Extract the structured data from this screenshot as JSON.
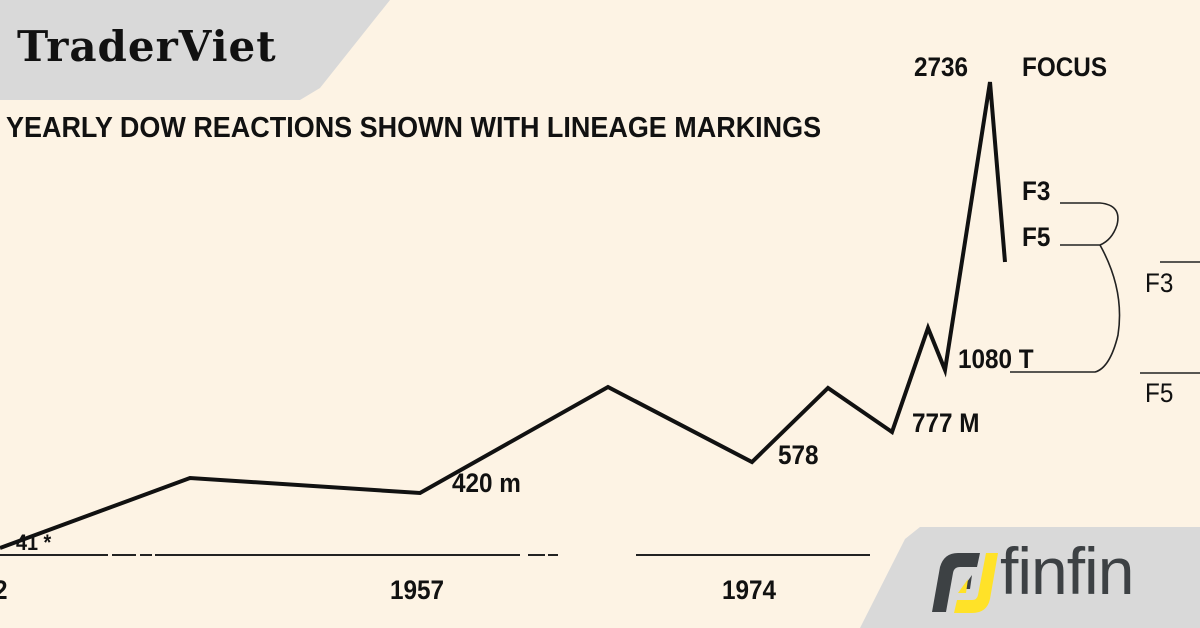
{
  "header": {
    "brand": "TraderViet"
  },
  "footer": {
    "brand": "finfin",
    "brand_colors": {
      "dark": "#3d4144",
      "accent": "#ffe228"
    }
  },
  "chart_data": {
    "type": "line",
    "title": "YEARLY DOW REACTIONS SHOWN WITH LINEAGE MARKINGS",
    "x_ticks": [
      "2",
      "1957",
      "1974"
    ],
    "points": [
      {
        "label": "41 *",
        "value": 41
      },
      {
        "label": "420 m",
        "value": 420
      },
      {
        "label": "578",
        "value": 578
      },
      {
        "label": "777 M",
        "value": 777
      },
      {
        "label": "1080 T",
        "value": 1080
      },
      {
        "label": "2736",
        "value": 2736
      }
    ],
    "annotations": [
      "FOCUS",
      "F3",
      "F5",
      "F3",
      "F5"
    ],
    "line_color": "#111111",
    "background": "#fdf3e4"
  }
}
